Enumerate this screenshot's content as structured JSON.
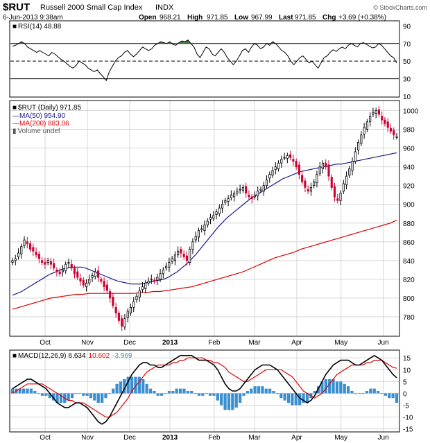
{
  "header": {
    "symbol": "$RUT",
    "name": "Russell 2000 Small Cap Index",
    "exchange": "INDX",
    "date": "6-Jun-2013 9:38am",
    "open_label": "Open",
    "open": "968.21",
    "high_label": "High",
    "high": "971.85",
    "low_label": "Low",
    "low": "967.99",
    "last_label": "Last",
    "last": "971.85",
    "chg_label": "Chg",
    "chg": "+3.69 (+0.38%)",
    "copyright": "© StockCharts.com"
  },
  "colors": {
    "up_candle": "#000000",
    "down_candle": "#cc0033",
    "ma50": "#1a1a8c",
    "ma200": "#dd0000",
    "macd_line": "#000000",
    "signal_line": "#dd0000",
    "histogram": "#3a8fd0",
    "rsi_overbought_fill": "#3d7a3d"
  },
  "chart_data": [
    {
      "type": "line",
      "panel": "rsi",
      "legend": "RSI(14) 48.88",
      "ylim": [
        10,
        95
      ],
      "yticks": [
        10,
        30,
        50,
        70,
        90
      ],
      "levels": [
        30,
        50,
        70
      ],
      "values": [
        67,
        68,
        70,
        72,
        70,
        66,
        64,
        62,
        60,
        62,
        60,
        58,
        56,
        60,
        58,
        55,
        52,
        50,
        47,
        44,
        42,
        45,
        50,
        48,
        46,
        42,
        40,
        38,
        40,
        36,
        32,
        28,
        38,
        44,
        50,
        54,
        56,
        60,
        62,
        58,
        55,
        58,
        62,
        66,
        64,
        62,
        64,
        68,
        70,
        72,
        71,
        70,
        72,
        69,
        68,
        71,
        73,
        72,
        74,
        70,
        66,
        58,
        54,
        60,
        66,
        64,
        58,
        56,
        60,
        64,
        60,
        54,
        50,
        46,
        50,
        56,
        62,
        64,
        60,
        66,
        70,
        68,
        64,
        66,
        70,
        68,
        72,
        70,
        66,
        62,
        60,
        56,
        50,
        46,
        50,
        54,
        56,
        52,
        48,
        50,
        46,
        42,
        48,
        54,
        56,
        60,
        63,
        61,
        64,
        66,
        64,
        68,
        70,
        68,
        66,
        70,
        71,
        69,
        67,
        65,
        66,
        70,
        68,
        64,
        60,
        56,
        54,
        48
      ]
    },
    {
      "type": "candlestick",
      "panel": "price",
      "legend": {
        "price": "$RUT (Daily) 971.85",
        "ma50": "MA(50) 954.90",
        "ma200": "MA(200) 883.06",
        "volume": "Volume undef"
      },
      "ylim": [
        760,
        1010
      ],
      "yticks": [
        780,
        800,
        820,
        840,
        860,
        880,
        900,
        920,
        940,
        960,
        980,
        1000
      ],
      "x_labels": [
        "Oct",
        "Nov",
        "Dec",
        "2013",
        "Feb",
        "Mar",
        "Apr",
        "May",
        "Jun"
      ],
      "close": [
        840,
        842,
        848,
        855,
        862,
        858,
        852,
        850,
        846,
        842,
        838,
        836,
        840,
        836,
        832,
        828,
        826,
        830,
        836,
        838,
        832,
        826,
        822,
        818,
        814,
        816,
        820,
        824,
        828,
        822,
        818,
        812,
        808,
        800,
        792,
        784,
        776,
        770,
        778,
        786,
        790,
        796,
        802,
        808,
        812,
        816,
        818,
        820,
        818,
        822,
        826,
        830,
        834,
        838,
        842,
        846,
        850,
        848,
        844,
        840,
        852,
        860,
        866,
        872,
        874,
        878,
        882,
        886,
        888,
        892,
        896,
        900,
        904,
        906,
        910,
        912,
        914,
        916,
        918,
        912,
        908,
        906,
        910,
        914,
        916,
        920,
        926,
        932,
        936,
        940,
        944,
        948,
        950,
        952,
        950,
        946,
        940,
        932,
        924,
        918,
        914,
        918,
        924,
        932,
        940,
        944,
        940,
        930,
        918,
        908,
        904,
        912,
        922,
        930,
        938,
        946,
        956,
        966,
        974,
        982,
        988,
        994,
        998,
        1000,
        996,
        990,
        986,
        982,
        978,
        974,
        972
      ]
    },
    {
      "type": "line",
      "panel": "price",
      "name": "MA(50) 954.90",
      "values": [
        803,
        805,
        807,
        810,
        813,
        816,
        819,
        822,
        825,
        827,
        829,
        831,
        832,
        833,
        833,
        833,
        832,
        830,
        828,
        826,
        824,
        822,
        820,
        818,
        817,
        816,
        815,
        815,
        815,
        816,
        817,
        818,
        819,
        820,
        822,
        825,
        828,
        832,
        836,
        841,
        846,
        852,
        858,
        864,
        870,
        876,
        881,
        886,
        890,
        894,
        898,
        902,
        906,
        909,
        912,
        915,
        918,
        921,
        924,
        927,
        929,
        931,
        933,
        935,
        936,
        937,
        938,
        939,
        940,
        941,
        942,
        943,
        943,
        944,
        945,
        946,
        947,
        948,
        949,
        950,
        951,
        952,
        953,
        954,
        955
      ]
    },
    {
      "type": "line",
      "panel": "price",
      "name": "MA(200) 883.06",
      "values": [
        788,
        790,
        792,
        794,
        796,
        798,
        800,
        801,
        802,
        803,
        804,
        804,
        805,
        805,
        805,
        805,
        805,
        805,
        805,
        805,
        806,
        806,
        807,
        807,
        808,
        809,
        810,
        811,
        812,
        814,
        816,
        818,
        820,
        822,
        824,
        826,
        828,
        831,
        834,
        837,
        840,
        843,
        845,
        847,
        849,
        852,
        854,
        856,
        858,
        860,
        862,
        864,
        866,
        868,
        870,
        872,
        874,
        876,
        878,
        880,
        883
      ]
    },
    {
      "type": "bar",
      "panel": "macd",
      "legend": {
        "title": "MACD(12,26,9)",
        "macd": "6.634",
        "signal": "10.602",
        "histogram": "-3.969"
      },
      "ylim": [
        -16,
        18
      ],
      "yticks": [
        -15,
        -10,
        -5,
        0,
        5,
        10,
        15
      ],
      "macd": [
        2,
        3,
        4,
        5,
        6,
        6,
        5,
        4,
        3,
        2,
        0,
        -2,
        -4,
        -5,
        -6,
        -6,
        -5,
        -4,
        -4,
        -5,
        -6,
        -8,
        -10,
        -12,
        -13,
        -12,
        -10,
        -7,
        -4,
        -1,
        2,
        5,
        8,
        10,
        12,
        13,
        13,
        12,
        12,
        11,
        11,
        12,
        13,
        14,
        15,
        16,
        16,
        16,
        16,
        15,
        14,
        14,
        14,
        13,
        12,
        10,
        7,
        4,
        2,
        1,
        1,
        2,
        4,
        6,
        8,
        10,
        11,
        12,
        12,
        12,
        11,
        10,
        8,
        6,
        4,
        2,
        0,
        -2,
        -3,
        -4,
        -3,
        -1,
        2,
        5,
        8,
        10,
        12,
        13,
        14,
        14,
        14,
        13,
        12,
        12,
        13,
        14,
        15,
        16,
        15,
        14,
        12,
        10,
        8,
        6.6
      ],
      "signal": [
        0,
        1,
        2,
        3,
        4,
        4,
        4,
        4,
        4,
        3,
        2,
        1,
        0,
        -1,
        -2,
        -3,
        -3,
        -4,
        -4,
        -4,
        -5,
        -6,
        -7,
        -8,
        -9,
        -10,
        -10,
        -9,
        -8,
        -6,
        -4,
        -2,
        1,
        3,
        5,
        7,
        9,
        10,
        11,
        12,
        12,
        12,
        12,
        13,
        13,
        14,
        14,
        15,
        15,
        15,
        15,
        15,
        14,
        14,
        13,
        13,
        12,
        11,
        9,
        8,
        7,
        6,
        5,
        5,
        6,
        7,
        8,
        9,
        10,
        10,
        10,
        10,
        10,
        9,
        8,
        7,
        5,
        3,
        1,
        0,
        -1,
        -2,
        -1,
        0,
        2,
        4,
        6,
        8,
        9,
        10,
        11,
        12,
        12,
        12,
        12,
        13,
        13,
        14,
        14,
        14,
        13,
        12,
        11,
        10.6
      ],
      "histogram": [
        2,
        2,
        2,
        2,
        2,
        2,
        1,
        0,
        -1,
        -1,
        -2,
        -3,
        -4,
        -4,
        -4,
        -3,
        -2,
        0,
        0,
        -1,
        -1,
        -2,
        -3,
        -4,
        -4,
        -2,
        0,
        2,
        4,
        5,
        6,
        7,
        7,
        7,
        7,
        6,
        4,
        2,
        1,
        -1,
        -1,
        0,
        1,
        1,
        2,
        2,
        2,
        1,
        1,
        0,
        -1,
        -1,
        0,
        -1,
        -1,
        -3,
        -5,
        -7,
        -7,
        -7,
        -6,
        -4,
        -1,
        1,
        2,
        3,
        3,
        3,
        2,
        2,
        1,
        0,
        -2,
        -3,
        -4,
        -5,
        -5,
        -5,
        -4,
        -4,
        -2,
        1,
        3,
        5,
        6,
        6,
        6,
        5,
        5,
        4,
        3,
        1,
        0,
        0,
        0,
        1,
        2,
        2,
        1,
        0,
        -1,
        -2,
        -2,
        -4
      ]
    }
  ]
}
